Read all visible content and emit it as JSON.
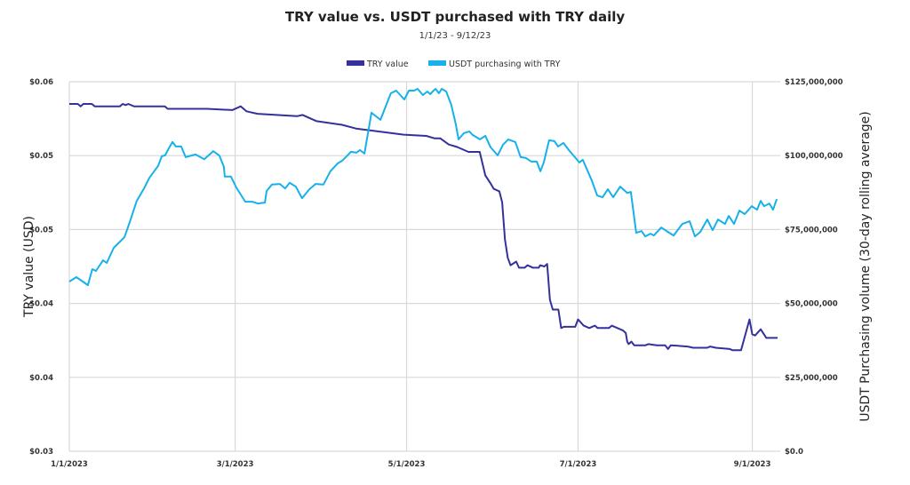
{
  "chart_data": {
    "type": "line",
    "title": "TRY value vs. USDT purchased with TRY daily",
    "subtitle": "1/1/23 - 9/12/23",
    "xlabel": "",
    "ylabel": "TRY value (USD)",
    "y2label": "USDT Purchasing volume (30-day rolling average)",
    "x_unit": "days since 1/1/2023",
    "xlim": [
      0,
      252
    ],
    "ylim": [
      0.03,
      0.06
    ],
    "y2lim": [
      0,
      125000000
    ],
    "grid": true,
    "legend_placement": "top-center",
    "x_ticks": [
      {
        "day": 0,
        "label": "1/1/2023"
      },
      {
        "day": 59,
        "label": "3/1/2023"
      },
      {
        "day": 120,
        "label": "5/1/2023"
      },
      {
        "day": 181,
        "label": "7/1/2023"
      },
      {
        "day": 243,
        "label": "9/1/2023"
      }
    ],
    "y_ticks": [
      {
        "value": 0.06,
        "label": "$0.06"
      },
      {
        "value": 0.054,
        "label": "$0.05"
      },
      {
        "value": 0.048,
        "label": "$0.05"
      },
      {
        "value": 0.042,
        "label": "$0.04"
      },
      {
        "value": 0.036,
        "label": "$0.04"
      },
      {
        "value": 0.03,
        "label": "$0.03"
      }
    ],
    "y2_ticks": [
      {
        "value": 125000000,
        "label": "$125,000,000"
      },
      {
        "value": 100000000,
        "label": "$100,000,000"
      },
      {
        "value": 75000000,
        "label": "$75,000,000"
      },
      {
        "value": 50000000,
        "label": "$50,000,000"
      },
      {
        "value": 25000000,
        "label": "$25,000,000"
      },
      {
        "value": 0,
        "label": "$0.0"
      }
    ],
    "series": [
      {
        "name": "TRY value",
        "axis": "left",
        "color": "#34319b",
        "points": [
          [
            0,
            0.0582
          ],
          [
            3,
            0.0582
          ],
          [
            4,
            0.058
          ],
          [
            5,
            0.0582
          ],
          [
            8,
            0.0582
          ],
          [
            9,
            0.058
          ],
          [
            18,
            0.058
          ],
          [
            19,
            0.0582
          ],
          [
            20,
            0.0581
          ],
          [
            21,
            0.0582
          ],
          [
            23,
            0.058
          ],
          [
            34,
            0.058
          ],
          [
            35,
            0.0578
          ],
          [
            49,
            0.0578
          ],
          [
            58,
            0.0577
          ],
          [
            61,
            0.058
          ],
          [
            63,
            0.0576
          ],
          [
            67,
            0.0574
          ],
          [
            81,
            0.0572
          ],
          [
            83,
            0.0573
          ],
          [
            88,
            0.0568
          ],
          [
            97,
            0.0565
          ],
          [
            102,
            0.0562
          ],
          [
            119,
            0.0557
          ],
          [
            127,
            0.0556
          ],
          [
            130,
            0.0554
          ],
          [
            132,
            0.0554
          ],
          [
            135,
            0.0549
          ],
          [
            138,
            0.0547
          ],
          [
            142,
            0.0543
          ],
          [
            146,
            0.0543
          ],
          [
            148,
            0.0524
          ],
          [
            150,
            0.0517
          ],
          [
            151,
            0.0513
          ],
          [
            153,
            0.0511
          ],
          [
            154,
            0.0502
          ],
          [
            155,
            0.0472
          ],
          [
            156,
            0.0457
          ],
          [
            157,
            0.0451
          ],
          [
            159,
            0.0454
          ],
          [
            160,
            0.0449
          ],
          [
            162,
            0.0449
          ],
          [
            163,
            0.0451
          ],
          [
            165,
            0.0449
          ],
          [
            167,
            0.0449
          ],
          [
            167.5,
            0.0451
          ],
          [
            169,
            0.045
          ],
          [
            170,
            0.0452
          ],
          [
            171,
            0.0423
          ],
          [
            172,
            0.0415
          ],
          [
            174,
            0.0415
          ],
          [
            175,
            0.04
          ],
          [
            176,
            0.0401
          ],
          [
            180,
            0.0401
          ],
          [
            181,
            0.0407
          ],
          [
            183,
            0.0402
          ],
          [
            185,
            0.04
          ],
          [
            187,
            0.0402
          ],
          [
            188,
            0.04
          ],
          [
            192,
            0.04
          ],
          [
            193,
            0.0402
          ],
          [
            197,
            0.0398
          ],
          [
            198,
            0.0396
          ],
          [
            198.5,
            0.0389
          ],
          [
            199,
            0.0387
          ],
          [
            200,
            0.0389
          ],
          [
            201,
            0.0386
          ],
          [
            205,
            0.0386
          ],
          [
            206,
            0.0387
          ],
          [
            209,
            0.0386
          ],
          [
            212,
            0.0386
          ],
          [
            213,
            0.0383
          ],
          [
            214,
            0.0386
          ],
          [
            220,
            0.0385
          ],
          [
            222,
            0.0384
          ],
          [
            227,
            0.0384
          ],
          [
            228,
            0.0385
          ],
          [
            230,
            0.0384
          ],
          [
            235,
            0.0383
          ],
          [
            236,
            0.0382
          ],
          [
            239,
            0.0382
          ],
          [
            242,
            0.0407
          ],
          [
            243,
            0.0395
          ],
          [
            244,
            0.0394
          ],
          [
            246,
            0.0399
          ],
          [
            248,
            0.0392
          ],
          [
            251,
            0.0392
          ],
          [
            252,
            0.0392
          ]
        ]
      },
      {
        "name": "USDT purchasing with TRY",
        "axis": "right",
        "color": "#16b1ea",
        "points": [
          [
            0,
            57400000.0
          ],
          [
            2.5,
            58900000.0
          ],
          [
            6.6,
            56200000.0
          ],
          [
            8.2,
            61600000.0
          ],
          [
            9.5,
            61000000.0
          ],
          [
            12,
            64600000.0
          ],
          [
            13.3,
            63700000.0
          ],
          [
            15.8,
            68800000.0
          ],
          [
            19.6,
            72400000.0
          ],
          [
            21.5,
            77500000.0
          ],
          [
            24,
            84700000.0
          ],
          [
            26.6,
            88900000.0
          ],
          [
            28.5,
            92500000.0
          ],
          [
            31.6,
            96500000.0
          ],
          [
            32.9,
            99800000.0
          ],
          [
            34.1,
            100100000.0
          ],
          [
            35.4,
            102500000.0
          ],
          [
            36.7,
            104600000.0
          ],
          [
            37.9,
            103100000.0
          ],
          [
            39.8,
            103100000.0
          ],
          [
            41.4,
            99500000.0
          ],
          [
            44.9,
            100400000.0
          ],
          [
            48,
            98800000.0
          ],
          [
            51.2,
            101500000.0
          ],
          [
            53.4,
            100000000.0
          ],
          [
            55,
            96200000.0
          ],
          [
            55.3,
            92900000.0
          ],
          [
            57.5,
            92900000.0
          ],
          [
            59.4,
            89200000.0
          ],
          [
            62.6,
            84400000.0
          ],
          [
            65.1,
            84400000.0
          ],
          [
            67,
            83800000.0
          ],
          [
            69.6,
            84100000.0
          ],
          [
            70.2,
            88000000.0
          ],
          [
            72.1,
            90200000.0
          ],
          [
            74.9,
            90400000.0
          ],
          [
            76.8,
            88900000.0
          ],
          [
            78.4,
            90800000.0
          ],
          [
            80.6,
            89500000.0
          ],
          [
            82.8,
            85600000.0
          ],
          [
            85.4,
            88600000.0
          ],
          [
            87.6,
            90400000.0
          ],
          [
            90.4,
            90200000.0
          ],
          [
            92.9,
            94700000.0
          ],
          [
            95.5,
            97400000.0
          ],
          [
            97.1,
            98300000.0
          ],
          [
            100.2,
            101300000.0
          ],
          [
            102.1,
            101000000.0
          ],
          [
            103.4,
            101900000.0
          ],
          [
            105,
            100700000.0
          ],
          [
            107.5,
            114500000.0
          ],
          [
            110.7,
            112100000.0
          ],
          [
            114.4,
            121100000.0
          ],
          [
            116.3,
            122000000.0
          ],
          [
            119.2,
            119000000.0
          ],
          [
            120.8,
            122000000.0
          ],
          [
            122.7,
            122000000.0
          ],
          [
            123.9,
            122600000.0
          ],
          [
            125.8,
            120500000.0
          ],
          [
            127.4,
            121700000.0
          ],
          [
            128.4,
            120800000.0
          ],
          [
            129.6,
            122000000.0
          ],
          [
            130.3,
            122600000.0
          ],
          [
            131.5,
            121100000.0
          ],
          [
            132.5,
            122600000.0
          ],
          [
            134.1,
            121700000.0
          ],
          [
            135.9,
            117200000.0
          ],
          [
            137.5,
            110600000.0
          ],
          [
            138.5,
            105500000.0
          ],
          [
            140.4,
            107600000.0
          ],
          [
            142.3,
            108200000.0
          ],
          [
            143.5,
            107000000.0
          ],
          [
            146.1,
            105500000.0
          ],
          [
            148,
            106700000.0
          ],
          [
            149.9,
            102800000.0
          ],
          [
            152.4,
            100100000.0
          ],
          [
            154.3,
            103700000.0
          ],
          [
            156.2,
            105500000.0
          ],
          [
            158.7,
            104600000.0
          ],
          [
            160.6,
            99500000.0
          ],
          [
            162.5,
            99200000.0
          ],
          [
            164.4,
            98000000.0
          ],
          [
            166.3,
            98000000.0
          ],
          [
            167.6,
            94700000.0
          ],
          [
            168.8,
            97700000.0
          ],
          [
            170.7,
            105200000.0
          ],
          [
            172.6,
            104900000.0
          ],
          [
            173.9,
            103100000.0
          ],
          [
            175.8,
            104300000.0
          ],
          [
            177.7,
            101900000.0
          ],
          [
            181.5,
            97700000.0
          ],
          [
            182.7,
            98600000.0
          ],
          [
            185.9,
            91600000.0
          ],
          [
            187.8,
            86500000.0
          ],
          [
            189.7,
            85900000.0
          ],
          [
            191.6,
            88600000.0
          ],
          [
            193.5,
            85900000.0
          ],
          [
            196,
            89500000.0
          ],
          [
            198.5,
            87400000.0
          ],
          [
            199.8,
            87700000.0
          ],
          [
            201.7,
            73900000.0
          ],
          [
            203.6,
            74500000.0
          ],
          [
            204.9,
            72700000.0
          ],
          [
            206.8,
            73600000.0
          ],
          [
            208,
            73000000.0
          ],
          [
            210.6,
            75700000.0
          ],
          [
            212.5,
            74500000.0
          ],
          [
            215,
            73000000.0
          ],
          [
            218.1,
            76900000.0
          ],
          [
            220.7,
            77800000.0
          ],
          [
            222.6,
            72700000.0
          ],
          [
            224.5,
            74200000.0
          ],
          [
            227,
            78400000.0
          ],
          [
            228.9,
            74800000.0
          ],
          [
            230.8,
            78400000.0
          ],
          [
            233.3,
            76900000.0
          ],
          [
            234.6,
            79600000.0
          ],
          [
            236.5,
            76900000.0
          ],
          [
            238.4,
            81400000.0
          ],
          [
            240.3,
            80200000.0
          ],
          [
            242.8,
            82900000.0
          ],
          [
            244.7,
            81700000.0
          ],
          [
            246,
            84700000.0
          ],
          [
            247.2,
            82900000.0
          ],
          [
            249.1,
            83800000.0
          ],
          [
            250.4,
            81700000.0
          ],
          [
            251.7,
            85300000.0
          ]
        ]
      }
    ]
  }
}
